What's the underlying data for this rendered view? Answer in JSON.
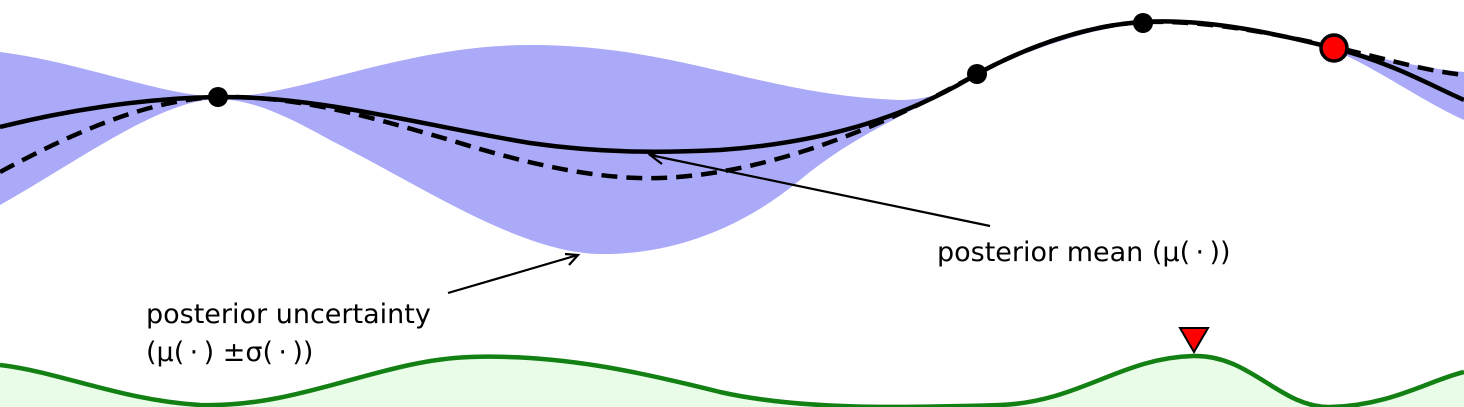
{
  "annotations": {
    "mean_label": "posterior mean (μ( · ))",
    "uncertainty_label_line1": "posterior uncertainty",
    "uncertainty_label_line2": "(μ( · ) ±σ( · ))"
  },
  "colors": {
    "uncertainty_band": "#aaaaf8",
    "mean_line": "#000000",
    "true_function_dashed": "#000000",
    "observation_point": "#000000",
    "new_observation_point": "#ff0000",
    "acquisition_line": "#138013",
    "acquisition_fill": "#e8fce8",
    "acquisition_max_marker": "#ff0000"
  }
}
